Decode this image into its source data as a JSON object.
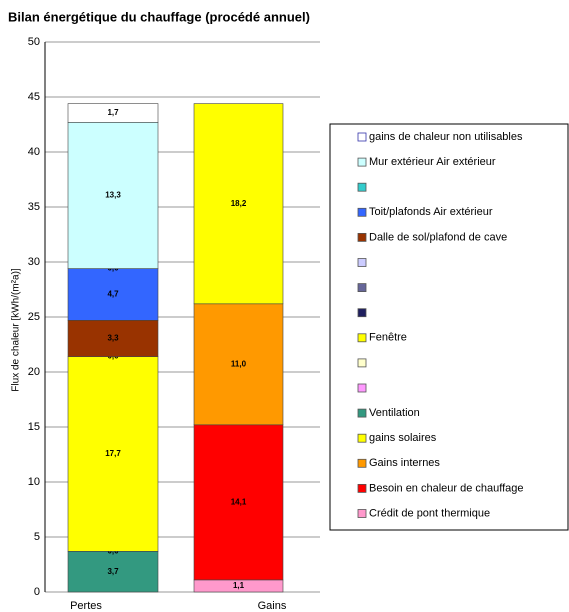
{
  "chart_data": {
    "type": "stacked_bar",
    "title": "Bilan énergétique du chauffage (procédé annuel)",
    "y_label": "Flux de chaleur [kWh/(m²a)]",
    "categories": [
      "Pertes",
      "Gains"
    ],
    "ylim": [
      0,
      50
    ],
    "yticks": [
      0,
      5,
      10,
      15,
      20,
      25,
      30,
      35,
      40,
      45,
      50
    ],
    "grid": true,
    "series": [
      {
        "name": "gains de chaleur non utilisables",
        "color": "#ffffff",
        "values": [
          1.7,
          null
        ],
        "value_labels": [
          "1,7",
          null
        ]
      },
      {
        "name": "Mur extérieur Air extérieur",
        "color": "#ccffff",
        "values": [
          13.3,
          null
        ],
        "value_labels": [
          "13,3",
          null
        ]
      },
      {
        "name": null,
        "color": "#33cccc",
        "values": [
          0,
          null
        ],
        "value_labels": [
          "0,0",
          null
        ]
      },
      {
        "name": "Toit/plafonds Air extérieur",
        "color": "#3366ff",
        "values": [
          4.7,
          null
        ],
        "value_labels": [
          "4,7",
          null
        ]
      },
      {
        "name": "Dalle de sol/plafond de cave",
        "color": "#993300",
        "values": [
          3.3,
          null
        ],
        "value_labels": [
          "3,3",
          null
        ]
      },
      {
        "name": null,
        "color": "#ccccff",
        "values": [
          null,
          null
        ],
        "value_labels": [
          null,
          null
        ]
      },
      {
        "name": null,
        "color": "#666699",
        "values": [
          null,
          null
        ],
        "value_labels": [
          null,
          null
        ]
      },
      {
        "name": null,
        "color": "#1f1f5f",
        "values": [
          0,
          null
        ],
        "value_labels": [
          "0,0",
          null
        ]
      },
      {
        "name": "Fenêtre",
        "color": "#ffff00",
        "values": [
          17.7,
          null
        ],
        "value_labels": [
          "17,7",
          null
        ]
      },
      {
        "name": null,
        "color": "#ffffcc",
        "values": [
          null,
          null
        ],
        "value_labels": [
          null,
          null
        ]
      },
      {
        "name": null,
        "color": "#ff99ff",
        "values": [
          0,
          null
        ],
        "value_labels": [
          "0,0",
          null
        ]
      },
      {
        "name": "Ventilation",
        "color": "#339980",
        "values": [
          3.7,
          null
        ],
        "value_labels": [
          "3,7",
          null
        ]
      },
      {
        "name": "gains solaires",
        "color": "#ffff00",
        "values": [
          null,
          18.2
        ],
        "value_labels": [
          null,
          "18,2"
        ]
      },
      {
        "name": "Gains internes",
        "color": "#ff9900",
        "values": [
          null,
          11.0
        ],
        "value_labels": [
          null,
          "11,0"
        ]
      },
      {
        "name": "Besoin en chaleur de chauffage",
        "color": "#ff0000",
        "values": [
          null,
          14.1
        ],
        "value_labels": [
          null,
          "14,1"
        ]
      },
      {
        "name": "Crédit de pont thermique",
        "color": "#ff99cc",
        "values": [
          null,
          1.1
        ],
        "value_labels": [
          null,
          "1,1"
        ]
      }
    ]
  }
}
